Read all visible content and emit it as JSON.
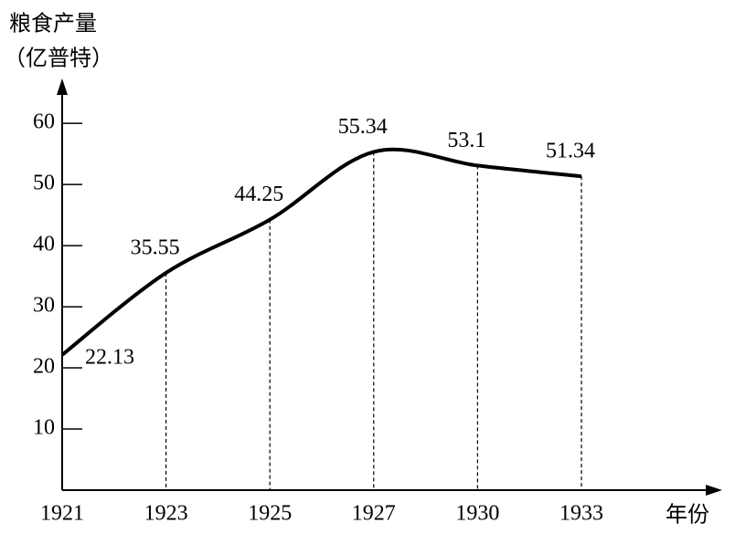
{
  "chart_data": {
    "type": "line",
    "ylabel": [
      "粮食产量",
      "（亿普特）"
    ],
    "xlabel": "年份",
    "categories": [
      "1921",
      "1923",
      "1925",
      "1927",
      "1930",
      "1933"
    ],
    "series": [
      {
        "name": null,
        "color": "#000000",
        "values": [
          22.13,
          35.55,
          44.25,
          55.34,
          53.1,
          51.34
        ]
      }
    ],
    "ylim": [
      0,
      66
    ],
    "yticks": [
      10,
      20,
      30,
      40,
      50,
      60
    ],
    "grid": false
  }
}
